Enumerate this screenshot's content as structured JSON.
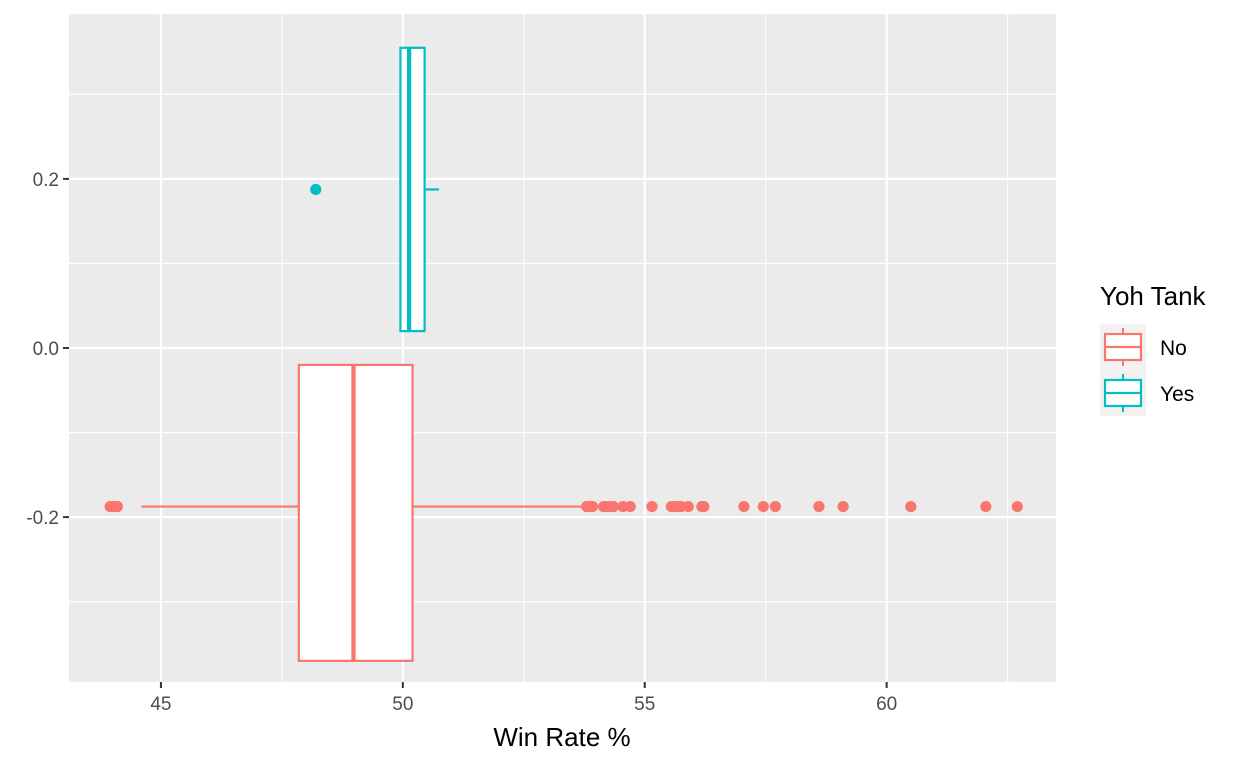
{
  "chart_data": {
    "type": "boxplot",
    "title": "",
    "xlabel": "Win Rate %",
    "ylabel": "",
    "xlim": [
      43.1,
      63.5
    ],
    "ylim": [
      -0.395,
      0.395
    ],
    "x_ticks": [
      45,
      50,
      55,
      60
    ],
    "x_tick_labels": [
      "45",
      "50",
      "55",
      "60"
    ],
    "y_ticks": [
      -0.2,
      0.0,
      0.2
    ],
    "y_tick_labels": [
      "-0.2",
      "0.0",
      "0.2"
    ],
    "grid": true,
    "legend": {
      "title": "Yoh Tank",
      "position": "right",
      "entries": [
        "No",
        "Yes"
      ]
    },
    "series": [
      {
        "name": "No",
        "color": "#F8766D",
        "y_center": -0.1875,
        "y_range": [
          -0.37,
          -0.02
        ],
        "whisker_low": 44.6,
        "q1": 47.85,
        "median": 48.98,
        "q3": 50.2,
        "whisker_high": 53.7,
        "outliers": [
          43.95,
          44.0,
          44.05,
          44.1,
          53.8,
          53.87,
          53.92,
          54.15,
          54.22,
          54.28,
          54.35,
          54.55,
          54.7,
          55.15,
          55.55,
          55.62,
          55.68,
          55.75,
          55.9,
          56.18,
          56.22,
          57.05,
          57.45,
          57.7,
          58.6,
          59.1,
          60.5,
          62.05,
          62.7
        ]
      },
      {
        "name": "Yes",
        "color": "#00BFC4",
        "y_center": 0.1875,
        "y_range": [
          0.02,
          0.355
        ],
        "whisker_low": 49.95,
        "q1": 49.95,
        "median": 50.13,
        "q3": 50.45,
        "whisker_high": 50.75,
        "outliers": [
          48.2
        ]
      }
    ]
  }
}
